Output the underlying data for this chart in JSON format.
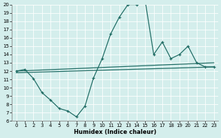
{
  "xlabel": "Humidex (Indice chaleur)",
  "bg_color": "#d4eeec",
  "grid_color": "#b8d8d5",
  "line_color": "#1e6b63",
  "xlim": [
    -0.5,
    23.5
  ],
  "ylim": [
    6,
    20
  ],
  "xticks": [
    0,
    1,
    2,
    3,
    4,
    5,
    6,
    7,
    8,
    9,
    10,
    11,
    12,
    13,
    14,
    15,
    16,
    17,
    18,
    19,
    20,
    21,
    22,
    23
  ],
  "yticks": [
    6,
    7,
    8,
    9,
    10,
    11,
    12,
    13,
    14,
    15,
    16,
    17,
    18,
    19,
    20
  ],
  "upper_line": [
    [
      0,
      12.0
    ],
    [
      23,
      13.0
    ]
  ],
  "lower_line": [
    [
      0,
      11.8
    ],
    [
      23,
      12.5
    ]
  ],
  "main_x": [
    0,
    1,
    2,
    3,
    4,
    5,
    6,
    7,
    8,
    9,
    10,
    11,
    12,
    13,
    14,
    15,
    16,
    17,
    18,
    19,
    20,
    21,
    22,
    23
  ],
  "main_y": [
    12.0,
    12.2,
    11.1,
    9.4,
    8.5,
    7.5,
    7.2,
    6.5,
    7.8,
    11.2,
    13.5,
    16.5,
    18.5,
    20.0,
    20.0,
    20.5,
    14.0,
    15.5,
    13.5,
    14.0,
    15.0,
    13.0,
    12.5,
    12.5
  ]
}
